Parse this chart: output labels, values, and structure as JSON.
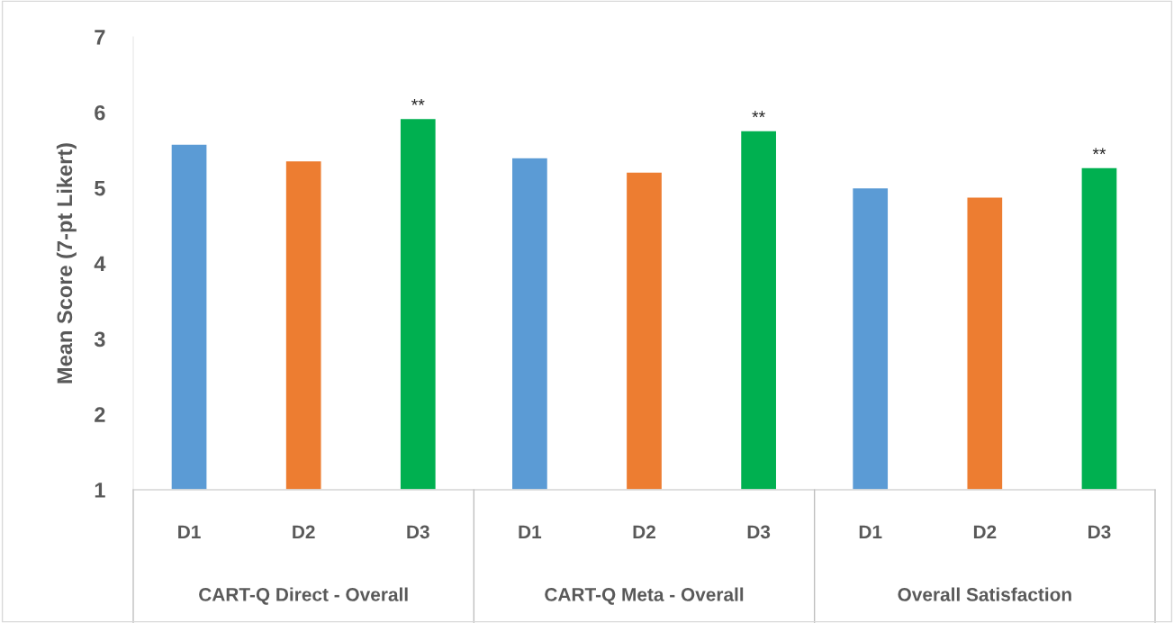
{
  "chart_data": {
    "type": "bar",
    "ylabel": "Mean Score (7-pt Likert)",
    "categories": [
      "CART-Q Direct - Overall",
      "CART-Q Meta - Overall",
      "Overall Satisfaction"
    ],
    "series": [
      {
        "name": "D1",
        "color": "#5b9bd5",
        "values": [
          5.58,
          5.4,
          5.0
        ]
      },
      {
        "name": "D2",
        "color": "#ed7d31",
        "values": [
          5.36,
          5.21,
          4.88
        ]
      },
      {
        "name": "D3",
        "color": "#00b050",
        "values": [
          5.92,
          5.76,
          5.27
        ]
      }
    ],
    "ylim": [
      1,
      7
    ],
    "yticks": [
      1,
      2,
      3,
      4,
      5,
      6,
      7
    ],
    "grid": false,
    "legend": false,
    "annotations": [
      "**",
      "**",
      "**"
    ]
  }
}
